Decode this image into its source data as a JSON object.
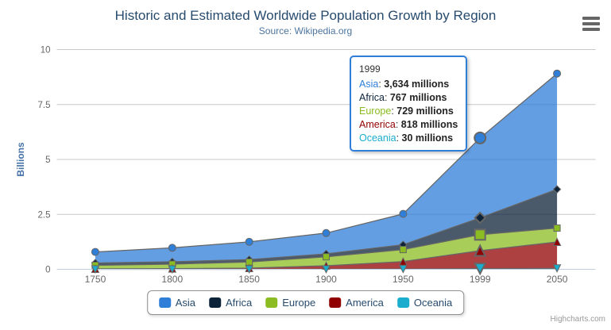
{
  "chart_data": {
    "type": "area",
    "stacking": "normal",
    "title": "Historic and Estimated Worldwide Population Growth by Region",
    "subtitle": "Source: Wikipedia.org",
    "xlabel": "",
    "ylabel": "Billions",
    "ylim": [
      0,
      10
    ],
    "yticks": [
      0,
      2.5,
      5,
      7.5,
      10
    ],
    "grid": true,
    "legend_position": "bottom",
    "values_unit": "millions",
    "categories": [
      "1750",
      "1800",
      "1850",
      "1900",
      "1950",
      "1999",
      "2050"
    ],
    "series": [
      {
        "name": "Asia",
        "color": "#2f7ed8",
        "marker": "circle",
        "values_millions": [
          502,
          635,
          809,
          947,
          1402,
          3634,
          5268
        ]
      },
      {
        "name": "Africa",
        "color": "#0d233a",
        "marker": "diamond",
        "values_millions": [
          106,
          107,
          111,
          133,
          221,
          767,
          1766
        ]
      },
      {
        "name": "Europe",
        "color": "#8bbc21",
        "marker": "square",
        "values_millions": [
          163,
          203,
          276,
          408,
          547,
          729,
          628
        ]
      },
      {
        "name": "America",
        "color": "#910000",
        "marker": "triangle-up",
        "values_millions": [
          18,
          31,
          54,
          156,
          339,
          818,
          1201
        ]
      },
      {
        "name": "Oceania",
        "color": "#1aadce",
        "marker": "triangle-down",
        "values_millions": [
          2,
          2,
          2,
          6,
          13,
          30,
          46
        ]
      }
    ],
    "stack_bottom_to_top": [
      "Oceania",
      "America",
      "Europe",
      "Africa",
      "Asia"
    ],
    "hover": {
      "category": "1999",
      "index": 5,
      "tooltip_border_color": "#2f7ed8",
      "tooltip_header": "1999",
      "tooltip_rows": [
        {
          "series": "Asia",
          "value": "3,634",
          "suffix": " millions"
        },
        {
          "series": "Africa",
          "value": "767",
          "suffix": " millions"
        },
        {
          "series": "Europe",
          "value": "729",
          "suffix": " millions"
        },
        {
          "series": "America",
          "value": "818",
          "suffix": " millions"
        },
        {
          "series": "Oceania",
          "value": "30",
          "suffix": " millions"
        }
      ]
    },
    "colors": {
      "grid": "#c8c8c8",
      "axis_line": "#c0d0e0",
      "axis_labels": "#666666",
      "series_edge_line": "#666666",
      "y_title": "#4572a7",
      "legend_text": "#274b6d",
      "title": "#274b6d",
      "subtitle": "#4d759e"
    }
  },
  "export_menu": {
    "icon": "hamburger-icon"
  },
  "credits": {
    "label": "Highcharts.com"
  }
}
